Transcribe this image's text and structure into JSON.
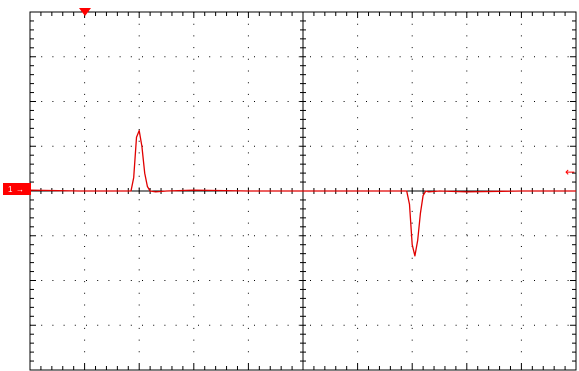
{
  "screen": {
    "background_color": "#ffffff",
    "grid_color": "#000000",
    "trace_color": "#e00000",
    "marker_color": "#ff0000",
    "divisions_x": 10,
    "divisions_y": 8,
    "minor_ticks_per_division": 5
  },
  "markers": {
    "channel_marker_label": "1",
    "channel_marker_arrow": "→",
    "trigger_level_arrow": "←"
  },
  "chart_data": {
    "type": "line",
    "title": "",
    "xlabel": "",
    "ylabel": "",
    "grid": true,
    "xlim": [
      0,
      10
    ],
    "ylim": [
      -4,
      4
    ],
    "series": [
      {
        "color": "#e00000",
        "x": [
          0,
          0.9,
          1.85,
          1.9,
          1.95,
          2.0,
          2.05,
          2.1,
          2.15,
          2.2,
          2.3,
          2.5,
          3.0,
          4.0,
          5.0,
          6.0,
          6.9,
          6.95,
          7.0,
          7.05,
          7.1,
          7.15,
          7.2,
          7.25,
          7.3,
          7.5,
          8.0,
          9.0,
          10.0
        ],
        "y": [
          0.02,
          0.0,
          0.0,
          0.3,
          1.2,
          1.35,
          1.0,
          0.4,
          0.1,
          0.0,
          -0.02,
          0.0,
          0.02,
          0.0,
          0.0,
          0.0,
          0.0,
          -0.3,
          -1.2,
          -1.45,
          -1.1,
          -0.5,
          -0.1,
          0.0,
          -0.02,
          0.0,
          -0.02,
          0.0,
          0.0
        ]
      }
    ]
  }
}
